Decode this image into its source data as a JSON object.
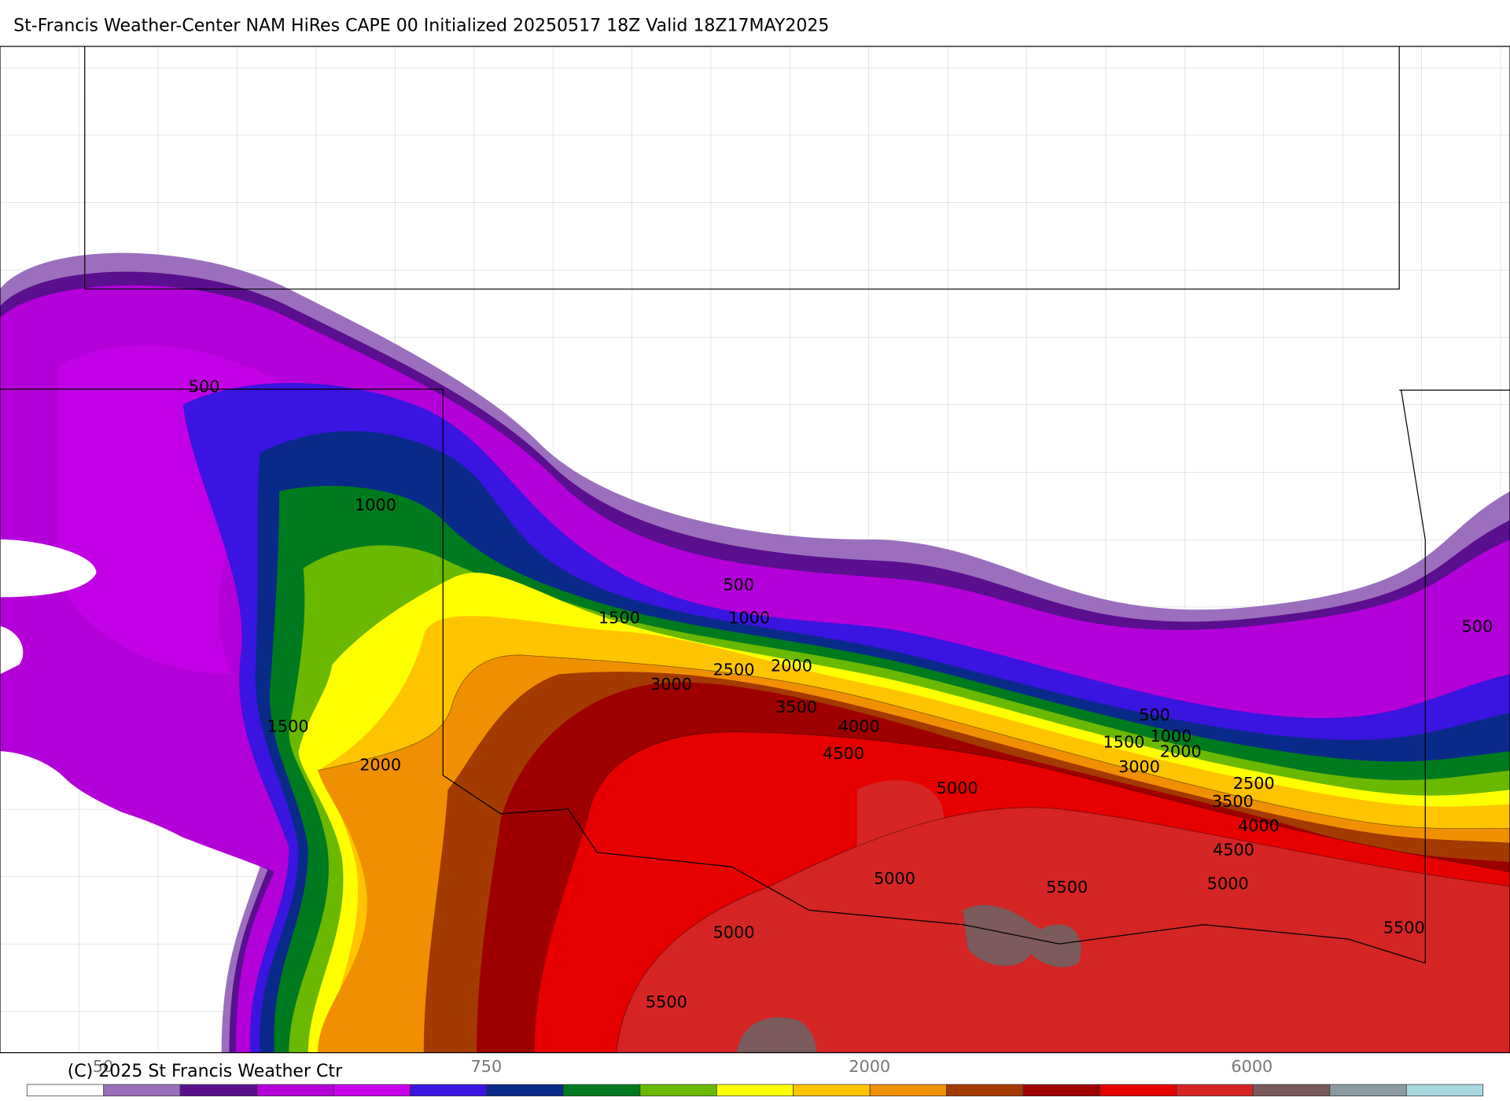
{
  "title": "St-Francis Weather-Center NAM HiRes CAPE  00 Initialized 20250517 18Z Valid 18Z17MAY2025",
  "copyright": "(C) 2025 St Francis Weather Ctr",
  "contour_labels": [
    500,
    1000,
    1500,
    2000,
    500,
    1000,
    1500,
    2500,
    2000,
    3000,
    3500,
    4000,
    4500,
    5000,
    5000,
    5500,
    5000,
    5500,
    500,
    1000,
    1500,
    2000,
    3000,
    2500,
    3500,
    4000,
    4500,
    5000,
    5500,
    500
  ],
  "colorbar": {
    "colors": [
      "#ffffff",
      "#9b6fbd",
      "#5a0f8f",
      "#b400d8",
      "#c800ec",
      "#3a14e0",
      "#0a2a8a",
      "#007a1e",
      "#6ab800",
      "#ffff00",
      "#ffc400",
      "#f09000",
      "#a33a00",
      "#9e0000",
      "#e60000",
      "#d42424",
      "#7a5a5a",
      "#8a9aa0",
      "#a8d8e0"
    ],
    "labels": [
      50,
      750,
      2000,
      6000
    ]
  }
}
